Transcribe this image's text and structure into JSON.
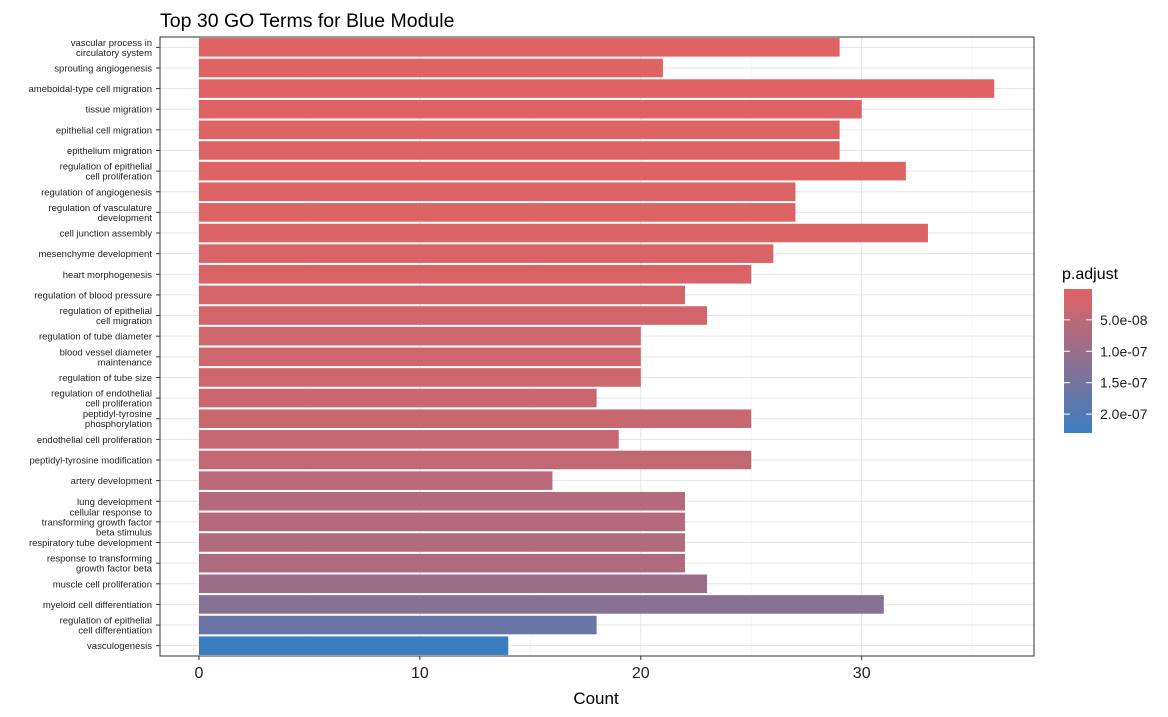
{
  "chart_data": {
    "type": "bar",
    "orientation": "horizontal",
    "title": "Top 30 GO Terms for Blue Module",
    "xlabel": "Count",
    "ylabel": "",
    "xlim": [
      0,
      37.8
    ],
    "x_ticks": [
      0,
      10,
      20,
      30
    ],
    "grid": true,
    "legend": {
      "title": "p.adjust",
      "position": "right",
      "ticks": [
        "5.0e-08",
        "1.0e-07",
        "1.5e-07",
        "2.0e-07"
      ],
      "tick_values": [
        5e-08,
        1e-07,
        1.5e-07,
        2e-07
      ],
      "range": [
        1e-09,
        2.3e-07
      ],
      "color_low": "#E06363",
      "color_high": "#3A7EBF"
    },
    "categories": [
      "vascular process in circulatory system",
      "sprouting angiogenesis",
      "ameboidal-type cell migration",
      "tissue migration",
      "epithelial cell migration",
      "epithelium migration",
      "regulation of epithelial cell proliferation",
      "regulation of angiogenesis",
      "regulation of vasculature development",
      "cell junction assembly",
      "mesenchyme development",
      "heart morphogenesis",
      "regulation of blood pressure",
      "regulation of epithelial cell migration",
      "regulation of tube diameter",
      "blood vessel diameter maintenance",
      "regulation of tube size",
      "regulation of endothelial cell proliferation",
      "peptidyl-tyrosine phosphorylation",
      "endothelial cell proliferation",
      "peptidyl-tyrosine modification",
      "artery development",
      "lung development",
      "cellular response to transforming growth factor beta stimulus",
      "respiratory tube development",
      "response to transforming growth factor beta",
      "muscle cell proliferation",
      "myeloid cell differentiation",
      "regulation of epithelial cell differentiation",
      "vasculogenesis"
    ],
    "label_lines": [
      [
        "vascular process in",
        "circulatory system"
      ],
      [
        "sprouting angiogenesis"
      ],
      [
        "ameboidal-type cell migration"
      ],
      [
        "tissue migration"
      ],
      [
        "epithelial cell migration"
      ],
      [
        "epithelium migration"
      ],
      [
        "regulation of epithelial",
        "cell proliferation"
      ],
      [
        "regulation of angiogenesis"
      ],
      [
        "regulation of vasculature",
        "development"
      ],
      [
        "cell junction assembly"
      ],
      [
        "mesenchyme development"
      ],
      [
        "heart morphogenesis"
      ],
      [
        "regulation of blood pressure"
      ],
      [
        "regulation of epithelial",
        "cell migration"
      ],
      [
        "regulation of tube diameter"
      ],
      [
        "blood vessel diameter",
        "maintenance"
      ],
      [
        "regulation of tube size"
      ],
      [
        "regulation of endothelial",
        "cell proliferation"
      ],
      [
        "peptidyl-tyrosine",
        "phosphorylation"
      ],
      [
        "endothelial cell proliferation"
      ],
      [
        "peptidyl-tyrosine modification"
      ],
      [
        "artery development"
      ],
      [
        "lung development"
      ],
      [
        "cellular response to",
        "transforming growth factor",
        "beta stimulus"
      ],
      [
        "respiratory tube development"
      ],
      [
        "response to transforming",
        "growth factor beta"
      ],
      [
        "muscle cell proliferation"
      ],
      [
        "myeloid cell differentiation"
      ],
      [
        "regulation of epithelial",
        "cell differentiation"
      ],
      [
        "vasculogenesis"
      ]
    ],
    "values": [
      29,
      21,
      36,
      30,
      29,
      29,
      32,
      27,
      27,
      33,
      26,
      25,
      22,
      23,
      20,
      20,
      20,
      18,
      25,
      19,
      25,
      16,
      22,
      22,
      22,
      22,
      23,
      31,
      18,
      14
    ],
    "p_adjust": [
      1e-09,
      2e-09,
      2e-09,
      3e-09,
      4e-09,
      4e-09,
      5e-09,
      6e-09,
      6e-09,
      7e-09,
      1e-08,
      1.2e-08,
      1.6e-08,
      2e-08,
      2.6e-08,
      2.6e-08,
      2.6e-08,
      3e-08,
      3.3e-08,
      3.8e-08,
      4.2e-08,
      5.5e-08,
      6.2e-08,
      6.2e-08,
      6.5e-08,
      7e-08,
      9.5e-08,
      1.25e-07,
      1.65e-07,
      2.3e-07
    ]
  }
}
